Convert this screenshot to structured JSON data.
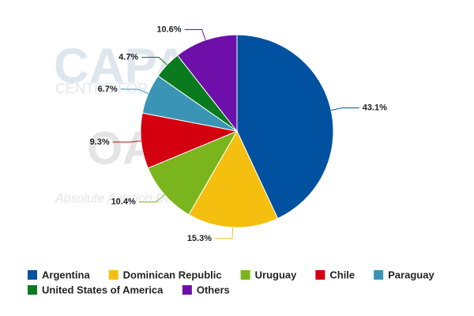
{
  "chart_data": {
    "type": "pie",
    "categories": [
      "Argentina",
      "Dominican Republic",
      "Uruguay",
      "Chile",
      "Paraguay",
      "United States of America",
      "Others"
    ],
    "values": [
      43.1,
      15.3,
      10.4,
      9.3,
      6.7,
      4.7,
      10.6
    ],
    "value_labels": [
      "43.1%",
      "15.3%",
      "10.4%",
      "9.3%",
      "6.7%",
      "4.7%",
      "10.6%"
    ],
    "colors": [
      "#0052a0",
      "#f5bf0f",
      "#7ab51d",
      "#d4000f",
      "#3a95b5",
      "#0a7a1e",
      "#6d0fa8"
    ],
    "watermark": [
      "CAPA",
      "CENTRE FOR AVIATION",
      "OAG",
      "Absolute Aviation Data"
    ]
  }
}
